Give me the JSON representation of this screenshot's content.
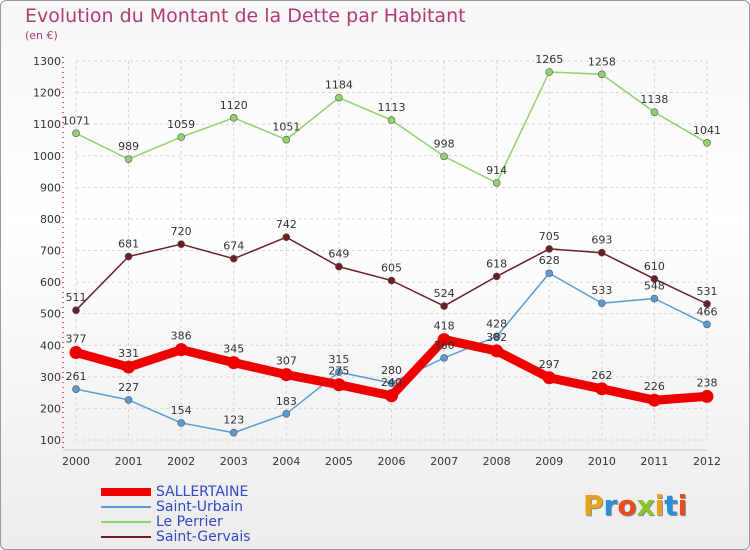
{
  "title": "Evolution du Montant de la Dette par Habitant",
  "subtitle": "(en €)",
  "logo": {
    "text": "Proxiti",
    "colors": [
      "#e8a21b",
      "#2a8fd6",
      "#e84c1b",
      "#8ac52a",
      "#e8a21b",
      "#2a8fd6",
      "#e84c1b"
    ]
  },
  "chart_data": {
    "type": "line",
    "title": "Evolution du Montant de la Dette par Habitant",
    "subtitle": "(en €)",
    "categories": [
      "2000",
      "2001",
      "2002",
      "2003",
      "2004",
      "2005",
      "2006",
      "2007",
      "2008",
      "2009",
      "2010",
      "2011",
      "2012"
    ],
    "ylim": [
      100,
      1300
    ],
    "yticks": [
      "100",
      "200",
      "300",
      "400",
      "500",
      "600",
      "700",
      "800",
      "900",
      "1000",
      "1100",
      "1200",
      "1300"
    ],
    "grid": true,
    "legend": "bottom-left",
    "series": [
      {
        "name": "SALLERTAINE",
        "color": "#ee0000",
        "values": [
          377,
          331,
          386,
          345,
          307,
          275,
          240,
          418,
          382,
          297,
          262,
          226,
          238
        ]
      },
      {
        "name": "Saint-Urbain",
        "color": "#5a9bd5",
        "values": [
          261,
          227,
          154,
          123,
          183,
          315,
          280,
          360,
          428,
          628,
          533,
          548,
          466
        ]
      },
      {
        "name": "Le Perrier",
        "color": "#8fd46a",
        "values": [
          1071,
          989,
          1059,
          1120,
          1051,
          1184,
          1113,
          998,
          914,
          1265,
          1258,
          1138,
          1041
        ]
      },
      {
        "name": "Saint-Gervais",
        "color": "#6b1f25",
        "values": [
          511,
          681,
          720,
          674,
          742,
          649,
          605,
          524,
          618,
          705,
          693,
          610,
          531
        ]
      }
    ]
  }
}
